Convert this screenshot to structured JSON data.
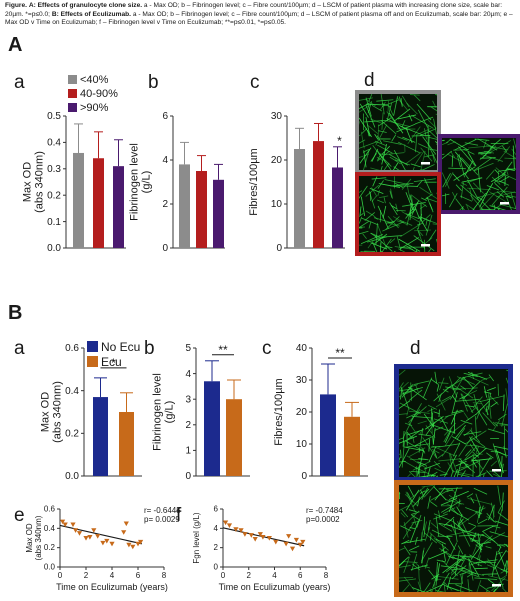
{
  "caption": {
    "fig": "Figure.",
    "a_head": "A:",
    "a_title": "Effects of granulocyte clone size.",
    "a_text": "a - Max OD; b – Fibrinogen level; c – Fibre count/100µm; d – LSCM of patient plasma with increasing clone size, scale bar: 20µm. *=p≤0.0;",
    "b_title": "B: Effects of Eculizumab.",
    "b_text": "a - Max OD; b – Fibrinogen level; c – Fibre count/100µm; d – LSCM of patient plasma off and on Eculizumab, scale bar: 20µm; e – Max OD v Time on Eculizumab; f – Fibrinogen level v Time on Eculizumab; **=p≤0.01, *=p≤0.05."
  },
  "sections": {
    "A": "A",
    "B": "B"
  },
  "panel_letters": {
    "Aa": "a",
    "Ab": "b",
    "Ac": "c",
    "Ad": "d",
    "Ba": "a",
    "Bb": "b",
    "Bc": "c",
    "Bd": "d",
    "Be": "e",
    "Bf": "f"
  },
  "colors": {
    "grey": "#8c8c8c",
    "red": "#b41e1e",
    "purple": "#4a1a6e",
    "blue": "#1c2a8e",
    "orange": "#c76a1a",
    "green": "#38e04a"
  },
  "micrographs": {
    "A": [
      "grey-border",
      "red-border",
      "purple-border"
    ],
    "B": [
      "blue-border",
      "orange-border"
    ]
  },
  "chart_data": [
    {
      "id": "A-a",
      "type": "bar",
      "categories": [
        "<40%",
        "40-90%",
        ">90%"
      ],
      "values": [
        0.36,
        0.34,
        0.31
      ],
      "errors": [
        0.11,
        0.1,
        0.1
      ],
      "colors": [
        "#8c8c8c",
        "#b41e1e",
        "#4a1a6e"
      ],
      "legend": [
        "<40%",
        "40-90%",
        ">90%"
      ],
      "ylabel": [
        "Max OD",
        "(abs 340nm)"
      ],
      "ylim": [
        0,
        0.5
      ],
      "yticks": [
        "0.0",
        "0.1",
        "0.2",
        "0.3",
        "0.4",
        "0.5"
      ],
      "annotations": []
    },
    {
      "id": "A-b",
      "type": "bar",
      "categories": [
        "<40%",
        "40-90%",
        ">90%"
      ],
      "values": [
        3.8,
        3.5,
        3.1
      ],
      "errors": [
        1.0,
        0.7,
        0.7
      ],
      "colors": [
        "#8c8c8c",
        "#b41e1e",
        "#4a1a6e"
      ],
      "ylabel": [
        "Fibrinogen level",
        "(g/L)"
      ],
      "ylim": [
        0,
        6
      ],
      "yticks": [
        "0",
        "2",
        "4",
        "6"
      ],
      "annotations": []
    },
    {
      "id": "A-c",
      "type": "bar",
      "categories": [
        "<40%",
        "40-90%",
        ">90%"
      ],
      "values": [
        22.5,
        24.3,
        18.3
      ],
      "errors": [
        4.7,
        4.0,
        4.7
      ],
      "colors": [
        "#8c8c8c",
        "#b41e1e",
        "#4a1a6e"
      ],
      "ylabel": [
        "Fibres/100µm"
      ],
      "ylim": [
        0,
        30
      ],
      "yticks": [
        "0",
        "10",
        "20",
        "30"
      ],
      "annotations": [
        "*"
      ]
    },
    {
      "id": "B-a",
      "type": "bar",
      "categories": [
        "No Ecu",
        "Ecu"
      ],
      "values": [
        0.37,
        0.3
      ],
      "errors": [
        0.09,
        0.09
      ],
      "colors": [
        "#1c2a8e",
        "#c76a1a"
      ],
      "legend": [
        "No Ecu",
        "Ecu"
      ],
      "ylabel": [
        "Max OD",
        "(abs 340nm)"
      ],
      "ylim": [
        0,
        0.6
      ],
      "yticks": [
        "0.0",
        "0.2",
        "0.4",
        "0.6"
      ],
      "annotations": [
        "*"
      ]
    },
    {
      "id": "B-b",
      "type": "bar",
      "categories": [
        "No Ecu",
        "Ecu"
      ],
      "values": [
        3.7,
        3.0
      ],
      "errors": [
        0.8,
        0.75
      ],
      "colors": [
        "#1c2a8e",
        "#c76a1a"
      ],
      "ylabel": [
        "Fibrinogen level",
        "(g/L)"
      ],
      "ylim": [
        0,
        5
      ],
      "yticks": [
        "0",
        "1",
        "2",
        "3",
        "4",
        "5"
      ],
      "annotations": [
        "**"
      ]
    },
    {
      "id": "B-c",
      "type": "bar",
      "categories": [
        "No Ecu",
        "Ecu"
      ],
      "values": [
        25.5,
        18.5
      ],
      "errors": [
        9.5,
        4.5
      ],
      "colors": [
        "#1c2a8e",
        "#c76a1a"
      ],
      "ylabel": [
        "Fibres/100µm"
      ],
      "ylim": [
        0,
        40
      ],
      "yticks": [
        "0",
        "10",
        "20",
        "30",
        "40"
      ],
      "annotations": [
        "**"
      ]
    },
    {
      "id": "B-e",
      "type": "scatter",
      "xlabel": "Time on Eculizumab (years)",
      "ylabel": [
        "Max OD",
        "(abs 340nm)"
      ],
      "xlim": [
        0,
        8
      ],
      "ylim": [
        0,
        0.6
      ],
      "xticks": [
        "0",
        "2",
        "4",
        "6",
        "8"
      ],
      "yticks": [
        "0.0",
        "0.2",
        "0.4",
        "0.6"
      ],
      "points": [
        [
          0.2,
          0.47
        ],
        [
          0.4,
          0.44
        ],
        [
          1.0,
          0.44
        ],
        [
          1.2,
          0.38
        ],
        [
          1.5,
          0.35
        ],
        [
          2.0,
          0.3
        ],
        [
          2.3,
          0.31
        ],
        [
          2.6,
          0.38
        ],
        [
          2.9,
          0.32
        ],
        [
          3.3,
          0.25
        ],
        [
          3.6,
          0.27
        ],
        [
          4.0,
          0.24
        ],
        [
          4.9,
          0.36
        ],
        [
          5.1,
          0.45
        ],
        [
          5.3,
          0.23
        ],
        [
          5.6,
          0.21
        ],
        [
          6.0,
          0.24
        ],
        [
          6.2,
          0.26
        ]
      ],
      "fit": [
        [
          0,
          0.43
        ],
        [
          6.3,
          0.24
        ]
      ],
      "annotation": [
        "r= -0.6445",
        "p= 0.0029"
      ]
    },
    {
      "id": "B-f",
      "type": "scatter",
      "xlabel": "Time on Eculizumab (years)",
      "ylabel": [
        "Fgn level (g/L)"
      ],
      "xlim": [
        0,
        8
      ],
      "ylim": [
        0,
        6
      ],
      "xticks": [
        "0",
        "2",
        "4",
        "6",
        "8"
      ],
      "yticks": [
        "0",
        "2",
        "4",
        "6"
      ],
      "points": [
        [
          0.2,
          4.6
        ],
        [
          0.5,
          4.3
        ],
        [
          1.0,
          3.9
        ],
        [
          1.4,
          3.8
        ],
        [
          1.7,
          3.4
        ],
        [
          2.2,
          3.3
        ],
        [
          2.5,
          2.9
        ],
        [
          2.9,
          3.4
        ],
        [
          3.1,
          3.1
        ],
        [
          3.6,
          3.0
        ],
        [
          4.1,
          2.6
        ],
        [
          4.9,
          2.4
        ],
        [
          5.1,
          3.2
        ],
        [
          5.4,
          1.9
        ],
        [
          5.7,
          2.8
        ],
        [
          6.0,
          2.3
        ],
        [
          6.2,
          2.6
        ]
      ],
      "fit": [
        [
          0,
          4.05
        ],
        [
          6.3,
          2.2
        ]
      ],
      "annotation": [
        "r= -0.7484",
        "p=0.0002"
      ]
    }
  ]
}
